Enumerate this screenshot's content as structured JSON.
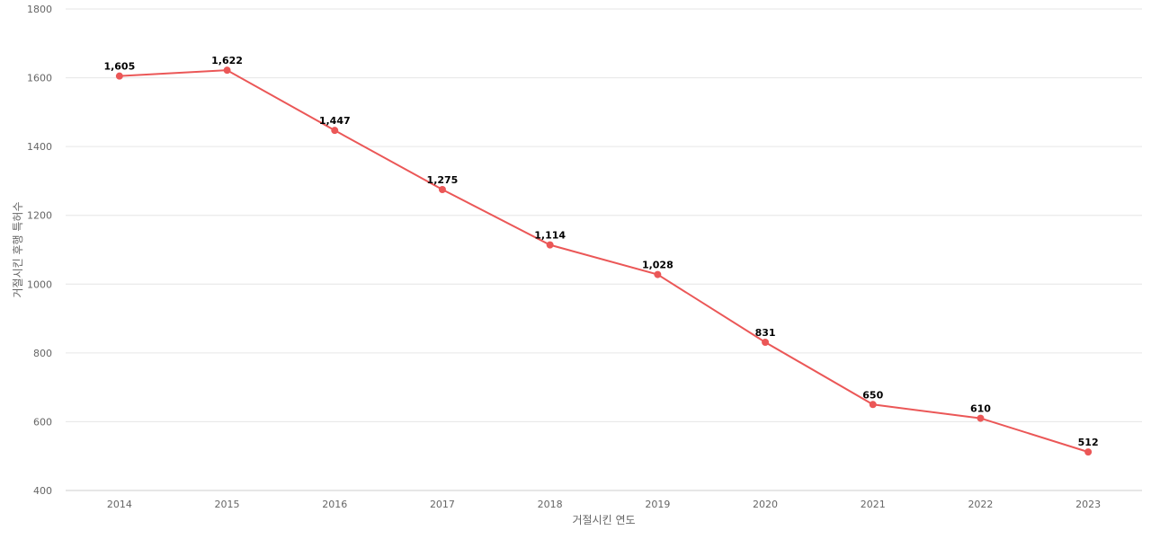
{
  "chart_data": {
    "type": "line",
    "title": "",
    "xlabel": "거절시킨 연도",
    "ylabel": "거절시킨 후행 특허수",
    "x": [
      "2014",
      "2015",
      "2016",
      "2017",
      "2018",
      "2019",
      "2020",
      "2021",
      "2022",
      "2023"
    ],
    "yticks": [
      400,
      600,
      800,
      1000,
      1200,
      1400,
      1600,
      1800
    ],
    "ylim": [
      400,
      1800
    ],
    "grid": true,
    "series": [
      {
        "values": [
          1605,
          1622,
          1447,
          1275,
          1114,
          1028,
          831,
          650,
          610,
          512
        ],
        "labels": [
          "1,605",
          "1,622",
          "1,447",
          "1,275",
          "1,114",
          "1,028",
          "831",
          "650",
          "610",
          "512"
        ],
        "color": "#eb5757"
      }
    ]
  }
}
